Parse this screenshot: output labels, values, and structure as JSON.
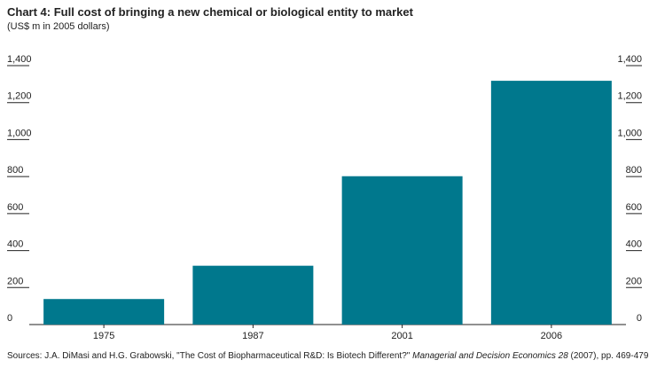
{
  "chart_data": {
    "type": "bar",
    "title": "Chart 4: Full cost of bringing a new chemical or biological entity to market",
    "subtitle": "(US$ m in 2005 dollars)",
    "categories": [
      "1975",
      "1987",
      "2001",
      "2006"
    ],
    "values": [
      138,
      318,
      802,
      1318
    ],
    "ylim": [
      0,
      1400
    ],
    "yticks": [
      0,
      200,
      400,
      600,
      800,
      1000,
      1200,
      1400
    ],
    "ytick_labels": [
      "0",
      "200",
      "400",
      "600",
      "800",
      "1,000",
      "1,200",
      "1,400"
    ],
    "grid": false,
    "axes": "left and right",
    "bar_color": "#00788d",
    "source": {
      "prefix": "Sources: J.A. DiMasi and H.G. Grabowski, \"The Cost of Biopharmaceutical R&D: Is Biotech Different?\" ",
      "journal": "Managerial and Decision Economics 28",
      "suffix": " (2007), pp. 469-479"
    }
  }
}
